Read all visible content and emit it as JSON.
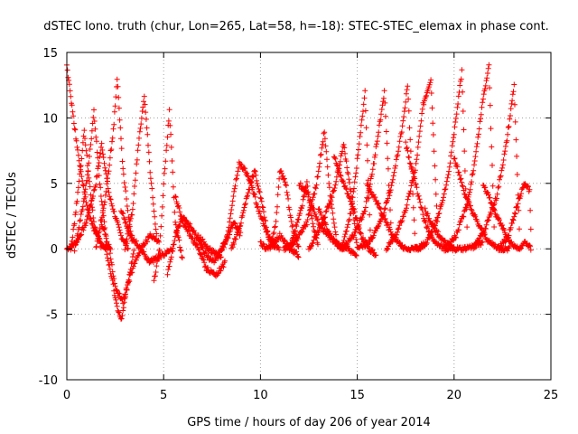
{
  "chart_data": {
    "type": "scatter",
    "title": "dSTEC Iono. truth (chur, Lon=265, Lat=58, h=-18): STEC-STEC_elemax in phase cont.",
    "xlabel": "GPS time / hours of day 206 of year 2014",
    "ylabel": "dSTEC  / TECUs",
    "xlim": [
      0,
      25
    ],
    "ylim": [
      -10,
      15
    ],
    "x_ticks": [
      0,
      5,
      10,
      15,
      20,
      25
    ],
    "y_ticks": [
      -10,
      -5,
      0,
      5,
      10,
      15
    ],
    "grid": true,
    "marker": "+",
    "color": "#ff0000",
    "arcs": [
      {
        "t": [
          0.0,
          0.3,
          0.6,
          1.0,
          1.4,
          1.8,
          2.3
        ],
        "y": [
          14.0,
          10.5,
          7.0,
          3.5,
          1.5,
          0.3,
          0.0
        ]
      },
      {
        "t": [
          0.0,
          0.5,
          1.0,
          1.5,
          1.8,
          2.2,
          2.8,
          3.2
        ],
        "y": [
          0.0,
          0.5,
          2.0,
          5.0,
          8.0,
          4.0,
          1.0,
          0.0
        ]
      },
      {
        "t": [
          0.2,
          0.4,
          0.7,
          0.9,
          1.1,
          1.4,
          1.8
        ],
        "y": [
          0.0,
          2.0,
          6.0,
          9.0,
          6.0,
          2.0,
          0.0
        ]
      },
      {
        "t": [
          0.4,
          0.8,
          1.1,
          1.4,
          1.7,
          2.1
        ],
        "y": [
          0.0,
          3.0,
          6.0,
          10.5,
          5.0,
          0.0
        ]
      },
      {
        "t": [
          1.5,
          2.0,
          2.4,
          2.6,
          2.9,
          3.4
        ],
        "y": [
          0.0,
          4.0,
          9.0,
          13.0,
          6.0,
          0.0
        ]
      },
      {
        "t": [
          2.0,
          2.3,
          2.6,
          2.8,
          3.1,
          3.5
        ],
        "y": [
          0.0,
          -2.0,
          -4.5,
          -5.5,
          -3.0,
          0.0
        ]
      },
      {
        "t": [
          1.8,
          2.2,
          2.5,
          2.9,
          3.3,
          3.8,
          4.3,
          4.8
        ],
        "y": [
          2.0,
          0.0,
          -3.0,
          -4.0,
          -2.0,
          0.0,
          1.0,
          0.5
        ]
      },
      {
        "t": [
          3.0,
          3.4,
          3.7,
          4.0,
          4.3,
          4.7
        ],
        "y": [
          0.0,
          3.0,
          8.0,
          11.8,
          6.0,
          0.0
        ]
      },
      {
        "t": [
          2.8,
          3.3,
          3.8,
          4.3,
          4.9,
          5.5
        ],
        "y": [
          3.0,
          1.0,
          0.0,
          -1.0,
          -0.5,
          0.0
        ]
      },
      {
        "t": [
          4.5,
          4.8,
          5.0,
          5.3,
          5.6,
          6.0
        ],
        "y": [
          -2.5,
          0.0,
          5.0,
          10.5,
          2.0,
          -1.0
        ]
      },
      {
        "t": [
          5.2,
          5.6,
          6.0,
          6.5,
          7.0,
          7.5,
          8.0
        ],
        "y": [
          -2.0,
          1.0,
          2.5,
          1.5,
          0.0,
          -1.0,
          -0.5
        ]
      },
      {
        "t": [
          5.6,
          6.0,
          6.4,
          6.8,
          7.2,
          7.7,
          8.2
        ],
        "y": [
          4.0,
          2.0,
          1.0,
          0.0,
          -1.5,
          -2.0,
          -1.0
        ]
      },
      {
        "t": [
          6.8,
          7.3,
          7.8,
          8.2,
          8.6,
          9.0
        ],
        "y": [
          1.0,
          0.0,
          -0.5,
          0.5,
          2.0,
          1.0
        ]
      },
      {
        "t": [
          8.0,
          8.3,
          8.6,
          8.9,
          9.2,
          9.5,
          9.9,
          10.4,
          11.0
        ],
        "y": [
          0.0,
          1.0,
          4.0,
          6.5,
          6.0,
          5.0,
          3.0,
          1.0,
          0.0
        ]
      },
      {
        "t": [
          8.5,
          8.9,
          9.3,
          9.7,
          10.0,
          10.4,
          10.8
        ],
        "y": [
          0.0,
          1.5,
          4.0,
          6.0,
          4.0,
          1.0,
          0.0
        ]
      },
      {
        "t": [
          10.0,
          10.3,
          10.6,
          11.0,
          11.5,
          12.0
        ],
        "y": [
          0.5,
          0.0,
          0.3,
          1.0,
          0.0,
          -0.5
        ]
      },
      {
        "t": [
          10.5,
          10.8,
          11.0,
          11.3,
          11.6,
          12.0
        ],
        "y": [
          0.0,
          2.0,
          6.0,
          5.0,
          2.0,
          0.0
        ]
      },
      {
        "t": [
          11.5,
          11.8,
          12.1,
          12.4,
          12.7,
          13.0
        ],
        "y": [
          0.0,
          1.5,
          3.0,
          5.0,
          2.0,
          0.0
        ]
      },
      {
        "t": [
          11.2,
          11.8,
          12.4,
          12.9,
          13.3,
          13.6,
          14.0
        ],
        "y": [
          0.0,
          0.5,
          2.0,
          5.0,
          9.0,
          4.0,
          0.0
        ]
      },
      {
        "t": [
          12.0,
          12.5,
          13.0,
          13.5,
          14.0,
          14.5,
          15.0
        ],
        "y": [
          5.0,
          4.0,
          2.0,
          1.0,
          0.3,
          0.0,
          -0.5
        ]
      },
      {
        "t": [
          12.5,
          13.2,
          13.8,
          14.3,
          14.7,
          15.0
        ],
        "y": [
          0.0,
          2.0,
          4.5,
          8.0,
          4.0,
          0.0
        ]
      },
      {
        "t": [
          13.0,
          13.6,
          14.2,
          14.7,
          15.1,
          15.4,
          15.7
        ],
        "y": [
          3.0,
          1.0,
          0.0,
          3.0,
          8.0,
          12.0,
          0.0
        ]
      },
      {
        "t": [
          13.8,
          14.3,
          14.8,
          15.2,
          15.6,
          16.0
        ],
        "y": [
          7.0,
          5.0,
          3.0,
          1.0,
          0.0,
          -0.5
        ]
      },
      {
        "t": [
          14.2,
          14.8,
          15.4,
          15.8,
          16.2,
          16.4,
          16.8
        ],
        "y": [
          0.0,
          1.0,
          3.0,
          6.0,
          10.0,
          12.0,
          0.0
        ]
      },
      {
        "t": [
          15.0,
          15.6,
          16.2,
          16.8,
          17.3,
          17.6,
          18.0
        ],
        "y": [
          0.0,
          0.5,
          2.0,
          5.0,
          9.0,
          12.5,
          0.0
        ]
      },
      {
        "t": [
          15.5,
          16.2,
          16.8,
          17.4,
          18.0,
          18.5
        ],
        "y": [
          5.0,
          3.0,
          1.0,
          0.0,
          0.0,
          0.2
        ]
      },
      {
        "t": [
          16.5,
          17.0,
          17.5,
          18.0,
          18.4,
          18.8,
          19.2
        ],
        "y": [
          0.0,
          1.0,
          3.0,
          6.0,
          11.0,
          13.0,
          0.0
        ]
      },
      {
        "t": [
          17.5,
          18.0,
          18.5,
          19.0,
          19.5,
          20.0
        ],
        "y": [
          8.0,
          5.0,
          2.0,
          0.5,
          0.0,
          0.0
        ]
      },
      {
        "t": [
          18.0,
          18.6,
          19.2,
          19.7,
          20.1,
          20.4,
          20.7
        ],
        "y": [
          0.0,
          0.5,
          2.5,
          5.5,
          10.0,
          13.5,
          0.0
        ]
      },
      {
        "t": [
          18.5,
          19.0,
          19.5,
          20.0,
          20.5,
          21.0,
          21.5
        ],
        "y": [
          3.0,
          1.5,
          0.5,
          0.0,
          0.0,
          0.2,
          0.5
        ]
      },
      {
        "t": [
          19.5,
          20.1,
          20.7,
          21.1,
          21.5,
          21.8,
          22.1
        ],
        "y": [
          0.0,
          1.0,
          3.5,
          7.0,
          11.5,
          14.0,
          0.0
        ]
      },
      {
        "t": [
          20.0,
          20.6,
          21.2,
          21.8,
          22.4,
          22.9
        ],
        "y": [
          7.0,
          4.0,
          2.0,
          0.5,
          0.0,
          0.0
        ]
      },
      {
        "t": [
          21.0,
          21.6,
          22.2,
          22.7,
          23.1,
          23.4
        ],
        "y": [
          0.0,
          1.5,
          4.0,
          8.0,
          12.5,
          0.0
        ]
      },
      {
        "t": [
          21.5,
          22.2,
          22.9,
          23.3,
          23.7,
          24.0
        ],
        "y": [
          5.0,
          2.5,
          0.5,
          0.0,
          0.5,
          0.0
        ]
      },
      {
        "t": [
          22.3,
          22.8,
          23.2,
          23.6,
          23.9,
          24.0
        ],
        "y": [
          0.0,
          1.0,
          3.0,
          5.0,
          4.5,
          0.0
        ]
      }
    ]
  }
}
